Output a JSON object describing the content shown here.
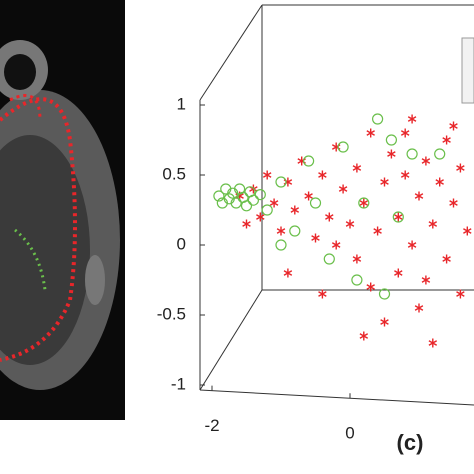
{
  "chart_data": {
    "type": "scatter3d",
    "label": "(c)",
    "xlim": [
      -2.2,
      1.8
    ],
    "ylim": [
      -1,
      1
    ],
    "xticks": [
      -2,
      0
    ],
    "yticks": [
      -1,
      -0.5,
      0,
      0.5,
      1
    ],
    "series": [
      {
        "color": "#e8262a",
        "marker": "asterisk",
        "x": [
          -1.6,
          -1.4,
          -1.3,
          -1.2,
          -1.1,
          -1.0,
          -0.9,
          -0.8,
          -0.7,
          -0.6,
          -0.5,
          -0.4,
          -0.3,
          -0.2,
          -0.1,
          0,
          0.1,
          0.1,
          0.2,
          0.3,
          0.3,
          0.4,
          0.5,
          0.5,
          0.6,
          0.7,
          0.7,
          0.8,
          0.9,
          0.9,
          1.0,
          1.0,
          1.1,
          1.2,
          1.2,
          1.3,
          1.4,
          1.4,
          1.5,
          1.6,
          1.6,
          1.7,
          -0.9,
          -0.4,
          0.2,
          1.1,
          0.8,
          1.5,
          -1.5,
          -0.2
        ],
        "values": [
          0.35,
          0.4,
          0.2,
          0.5,
          0.3,
          0.1,
          0.45,
          0.25,
          0.6,
          0.35,
          0.05,
          0.5,
          0.2,
          0.7,
          0.4,
          0.15,
          -0.1,
          0.55,
          0.3,
          0.8,
          -0.3,
          0.1,
          0.45,
          -0.55,
          0.65,
          0.2,
          -0.2,
          0.5,
          0.0,
          0.9,
          0.35,
          -0.45,
          0.6,
          0.15,
          -0.7,
          0.45,
          -0.1,
          0.75,
          0.3,
          -0.35,
          0.55,
          0.1,
          -0.2,
          -0.35,
          -0.65,
          -0.25,
          0.8,
          0.85,
          0.15,
          0.0
        ]
      },
      {
        "color": "#6abf4b",
        "marker": "circle",
        "x": [
          -1.9,
          -1.85,
          -1.8,
          -1.75,
          -1.7,
          -1.65,
          -1.6,
          -1.55,
          -1.5,
          -1.45,
          -1.4,
          -1.3,
          -1.2,
          -1.0,
          -0.8,
          -0.6,
          -0.3,
          -0.1,
          0.1,
          0.4,
          0.6,
          0.2,
          0.9,
          0.5,
          1.3,
          -1.0,
          0.7,
          -0.5
        ],
        "values": [
          0.35,
          0.3,
          0.4,
          0.33,
          0.37,
          0.3,
          0.4,
          0.34,
          0.28,
          0.38,
          0.32,
          0.36,
          0.25,
          0.45,
          0.1,
          0.6,
          -0.1,
          0.7,
          -0.25,
          0.9,
          0.75,
          0.3,
          0.65,
          -0.35,
          0.65,
          0.0,
          0.2,
          0.3
        ]
      }
    ]
  }
}
